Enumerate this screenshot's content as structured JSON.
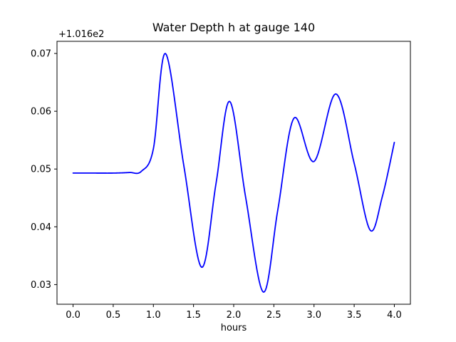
{
  "figure": {
    "title": "Water Depth h at gauge 140",
    "xlabel": "hours",
    "y_axis_offset": "+1.016e2"
  },
  "chart_data": {
    "type": "line",
    "title": "Water Depth h at gauge 140",
    "xlabel": "hours",
    "ylabel": "",
    "y_axis_offset": "+1.016e2",
    "legend": "none",
    "grid": false,
    "line_color": "#0000ff",
    "xlim": [
      -0.2,
      4.2
    ],
    "ylim": [
      0.0266,
      0.0721
    ],
    "x_ticks": [
      0.0,
      0.5,
      1.0,
      1.5,
      2.0,
      2.5,
      3.0,
      3.5,
      4.0
    ],
    "x_tick_labels": [
      "0.0",
      "0.5",
      "1.0",
      "1.5",
      "2.0",
      "2.5",
      "3.0",
      "3.5",
      "4.0"
    ],
    "y_ticks": [
      0.03,
      0.04,
      0.05,
      0.06,
      0.07
    ],
    "y_tick_labels": [
      "0.03",
      "0.04",
      "0.05",
      "0.06",
      "0.07"
    ],
    "series": [
      {
        "name": "h",
        "x": [
          0.0,
          0.25,
          0.5,
          0.7,
          0.85,
          1.0,
          1.15,
          1.38,
          1.6,
          1.78,
          1.95,
          2.15,
          2.37,
          2.55,
          2.75,
          3.0,
          3.27,
          3.5,
          3.7,
          3.85,
          4.0
        ],
        "y": [
          0.0493,
          0.0493,
          0.0493,
          0.0494,
          0.0496,
          0.0535,
          0.07,
          0.0505,
          0.033,
          0.0475,
          0.0617,
          0.045,
          0.0287,
          0.043,
          0.0588,
          0.0513,
          0.063,
          0.051,
          0.0394,
          0.0452,
          0.0546
        ]
      }
    ]
  }
}
